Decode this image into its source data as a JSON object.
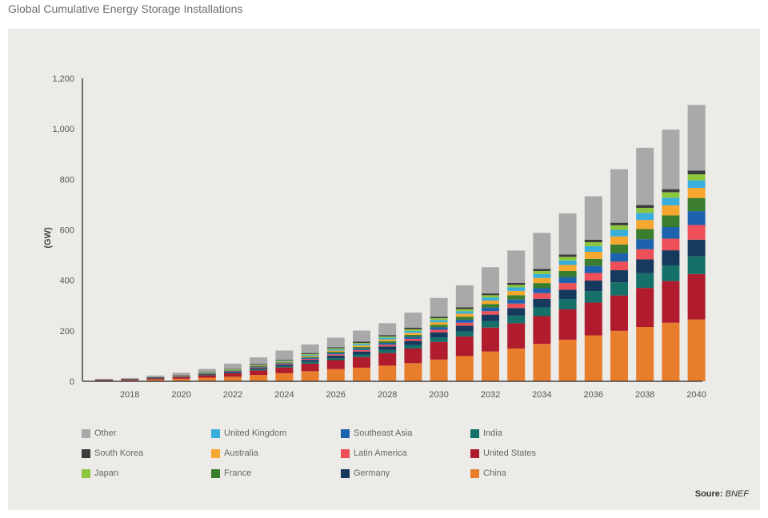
{
  "page_title": "Global Cumulative Energy Storage Installations",
  "source": {
    "label": "Soure:",
    "value": "BNEF"
  },
  "chart_data": {
    "type": "bar",
    "stacked": true,
    "title": "",
    "xlabel": "",
    "ylabel": "(GW)",
    "ylim": [
      0,
      1200
    ],
    "yticks": [
      0,
      200,
      400,
      600,
      800,
      1000,
      1200
    ],
    "ytick_labels": [
      "0",
      "200",
      "400",
      "600",
      "800",
      "1,000",
      "1,200"
    ],
    "grid": false,
    "legend_position": "bottom",
    "categories": [
      "2017",
      "2018",
      "2019",
      "2020",
      "2021",
      "2022",
      "2023",
      "2024",
      "2025",
      "2026",
      "2027",
      "2028",
      "2029",
      "2030",
      "2031",
      "2032",
      "2033",
      "2034",
      "2035",
      "2036",
      "2037",
      "2038",
      "2039",
      "2040"
    ],
    "xtick_labels": [
      "2018",
      "2020",
      "2022",
      "2024",
      "2026",
      "2028",
      "2030",
      "2032",
      "2034",
      "2036",
      "2038",
      "2040"
    ],
    "series": [
      {
        "name": "China",
        "color": "#e87d2b",
        "values": [
          3,
          4,
          7,
          10,
          14,
          18,
          25,
          32,
          40,
          48,
          54,
          62,
          72,
          86,
          100,
          118,
          130,
          148,
          165,
          182,
          200,
          215,
          232,
          245
        ]
      },
      {
        "name": "United States",
        "color": "#b01c2e",
        "values": [
          2,
          3,
          5,
          7,
          10,
          14,
          18,
          23,
          30,
          36,
          42,
          50,
          58,
          70,
          78,
          95,
          100,
          110,
          120,
          130,
          140,
          155,
          165,
          180
        ]
      },
      {
        "name": "India",
        "color": "#157069",
        "values": [
          0,
          0,
          1,
          1,
          2,
          3,
          4,
          5,
          7,
          8,
          10,
          12,
          14,
          18,
          20,
          25,
          30,
          35,
          40,
          45,
          52,
          58,
          62,
          70
        ]
      },
      {
        "name": "Germany",
        "color": "#163a5e",
        "values": [
          1,
          1,
          2,
          2,
          3,
          4,
          5,
          6,
          8,
          10,
          12,
          14,
          16,
          20,
          22,
          26,
          30,
          34,
          38,
          42,
          48,
          55,
          60,
          66
        ]
      },
      {
        "name": "Latin America",
        "color": "#ee4f58",
        "values": [
          0,
          0,
          0,
          1,
          1,
          2,
          3,
          3,
          4,
          5,
          6,
          7,
          8,
          10,
          12,
          14,
          18,
          22,
          26,
          30,
          34,
          40,
          46,
          58
        ]
      },
      {
        "name": "Southeast Asia",
        "color": "#1d62ac",
        "values": [
          0,
          0,
          0,
          0,
          1,
          1,
          2,
          3,
          4,
          5,
          6,
          7,
          8,
          10,
          12,
          14,
          16,
          20,
          24,
          28,
          34,
          40,
          46,
          55
        ]
      },
      {
        "name": "France",
        "color": "#3a7d2e",
        "values": [
          0,
          0,
          0,
          1,
          1,
          2,
          3,
          3,
          4,
          5,
          6,
          7,
          8,
          10,
          12,
          14,
          17,
          20,
          24,
          28,
          34,
          40,
          46,
          52
        ]
      },
      {
        "name": "Australia",
        "color": "#f5a72f",
        "values": [
          0,
          0,
          0,
          1,
          1,
          2,
          2,
          3,
          4,
          5,
          6,
          7,
          8,
          10,
          12,
          14,
          17,
          20,
          24,
          28,
          32,
          36,
          40,
          40
        ]
      },
      {
        "name": "United Kingdom",
        "color": "#3aaedb",
        "values": [
          0,
          0,
          0,
          0,
          1,
          1,
          2,
          3,
          4,
          5,
          6,
          7,
          8,
          9,
          10,
          12,
          14,
          16,
          18,
          22,
          26,
          28,
          30,
          30
        ]
      },
      {
        "name": "Japan",
        "color": "#8cc63f",
        "values": [
          0,
          0,
          0,
          0,
          1,
          1,
          1,
          2,
          3,
          4,
          4,
          5,
          6,
          7,
          8,
          9,
          10,
          12,
          14,
          16,
          18,
          20,
          22,
          24
        ]
      },
      {
        "name": "South Korea",
        "color": "#3b3b3b",
        "values": [
          1,
          1,
          1,
          1,
          2,
          2,
          3,
          3,
          4,
          4,
          5,
          5,
          6,
          6,
          7,
          7,
          8,
          8,
          9,
          10,
          10,
          11,
          12,
          15
        ]
      },
      {
        "name": "Other",
        "color": "#a9a9a9",
        "values": [
          3,
          4,
          7,
          10,
          12,
          20,
          27,
          36,
          34,
          38,
          44,
          47,
          60,
          74,
          87,
          104,
          128,
          143,
          163,
          172,
          212,
          227,
          236,
          260
        ]
      }
    ]
  },
  "legend": [
    {
      "name": "Other",
      "color": "#a9a9a9"
    },
    {
      "name": "United Kingdom",
      "color": "#3aaedb"
    },
    {
      "name": "Southeast Asia",
      "color": "#1d62ac"
    },
    {
      "name": "India",
      "color": "#157069"
    },
    {
      "name": "South Korea",
      "color": "#3b3b3b"
    },
    {
      "name": "Australia",
      "color": "#f5a72f"
    },
    {
      "name": "Latin America",
      "color": "#ee4f58"
    },
    {
      "name": "United States",
      "color": "#b01c2e"
    },
    {
      "name": "Japan",
      "color": "#8cc63f"
    },
    {
      "name": "France",
      "color": "#3a7d2e"
    },
    {
      "name": "Germany",
      "color": "#163a5e"
    },
    {
      "name": "China",
      "color": "#e87d2b"
    }
  ]
}
